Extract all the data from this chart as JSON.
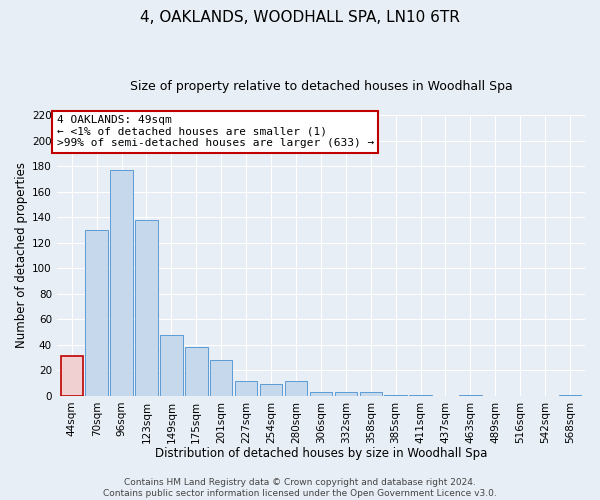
{
  "title": "4, OAKLANDS, WOODHALL SPA, LN10 6TR",
  "subtitle": "Size of property relative to detached houses in Woodhall Spa",
  "xlabel": "Distribution of detached houses by size in Woodhall Spa",
  "ylabel": "Number of detached properties",
  "categories": [
    "44sqm",
    "70sqm",
    "96sqm",
    "123sqm",
    "149sqm",
    "175sqm",
    "201sqm",
    "227sqm",
    "254sqm",
    "280sqm",
    "306sqm",
    "332sqm",
    "358sqm",
    "385sqm",
    "411sqm",
    "437sqm",
    "463sqm",
    "489sqm",
    "516sqm",
    "542sqm",
    "568sqm"
  ],
  "values": [
    31,
    130,
    177,
    138,
    48,
    38,
    28,
    12,
    9,
    12,
    3,
    3,
    3,
    1,
    1,
    0,
    1,
    0,
    0,
    0,
    1
  ],
  "bar_color": "#c5d8ec",
  "bar_edge_color": "#5b9bd5",
  "highlight_bar_index": 0,
  "highlight_bar_color": "#f0d0d0",
  "highlight_bar_edge_color": "#c00000",
  "ylim": [
    0,
    220
  ],
  "yticks": [
    0,
    20,
    40,
    60,
    80,
    100,
    120,
    140,
    160,
    180,
    200,
    220
  ],
  "annotation_title": "4 OAKLANDS: 49sqm",
  "annotation_line1": "← <1% of detached houses are smaller (1)",
  "annotation_line2": ">99% of semi-detached houses are larger (633) →",
  "annotation_box_edge_color": "#c00000",
  "footer_line1": "Contains HM Land Registry data © Crown copyright and database right 2024.",
  "footer_line2": "Contains public sector information licensed under the Open Government Licence v3.0.",
  "bg_color": "#e8eef5",
  "plot_bg_color": "#e8eef5",
  "title_fontsize": 11,
  "subtitle_fontsize": 9,
  "axis_label_fontsize": 8.5,
  "tick_fontsize": 7.5,
  "annotation_fontsize": 8,
  "footer_fontsize": 6.5
}
